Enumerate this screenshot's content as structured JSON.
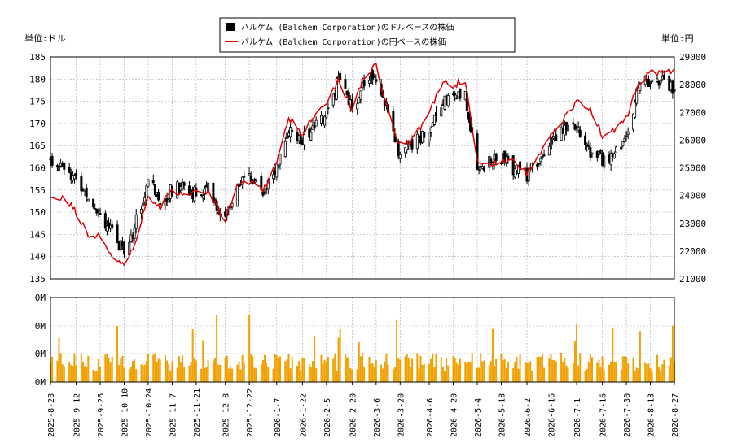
{
  "chart_data": {
    "type": "candlestick+bar",
    "legend": {
      "placement": "top-center",
      "items": [
        {
          "label": "バルケム (Balchem Corporation)のドルベースの株価",
          "marker": "black-square",
          "color": "#000000"
        },
        {
          "label": "バルケム (Balchem Corporation)の円ベースの株価",
          "marker": "red-line",
          "color": "#dd0000"
        }
      ]
    },
    "left_axis_unit": "単位:ドル",
    "right_axis_unit": "単位:円",
    "usd_axis": {
      "ticks": [
        135,
        140,
        145,
        150,
        155,
        160,
        165,
        170,
        175,
        180,
        185
      ],
      "range": [
        135,
        185
      ]
    },
    "jpy_axis": {
      "ticks": [
        21000,
        22000,
        23000,
        24000,
        25000,
        26000,
        27000,
        28000,
        29000
      ],
      "range": [
        21000,
        29000
      ]
    },
    "volume_axis": {
      "ticks": [
        "0M",
        "0M",
        "0M",
        "0M"
      ]
    },
    "x_ticks": [
      "2025-8-28",
      "2025-9-12",
      "2025-9-26",
      "2025-10-10",
      "2025-10-24",
      "2025-11-7",
      "2025-11-21",
      "2025-12-8",
      "2025-12-22",
      "2026-1-7",
      "2026-1-22",
      "2026-2-5",
      "2026-2-20",
      "2026-3-6",
      "2026-3-20",
      "2026-4-6",
      "2026-4-20",
      "2026-5-4",
      "2026-5-18",
      "2026-6-2",
      "2026-6-16",
      "2026-7-1",
      "2026-7-16",
      "2026-7-30",
      "2026-8-13",
      "2026-8-27"
    ],
    "usd_close_path": [
      {
        "x": "2025-8-28",
        "y": 162
      },
      {
        "x": "2025-9-5",
        "y": 161
      },
      {
        "x": "2025-9-12",
        "y": 157
      },
      {
        "x": "2025-9-19",
        "y": 154
      },
      {
        "x": "2025-9-26",
        "y": 150
      },
      {
        "x": "2025-10-3",
        "y": 145
      },
      {
        "x": "2025-10-10",
        "y": 141
      },
      {
        "x": "2025-10-17",
        "y": 148
      },
      {
        "x": "2025-10-24",
        "y": 157
      },
      {
        "x": "2025-10-31",
        "y": 153
      },
      {
        "x": "2025-11-7",
        "y": 155
      },
      {
        "x": "2025-11-14",
        "y": 156
      },
      {
        "x": "2025-11-21",
        "y": 154
      },
      {
        "x": "2025-11-28",
        "y": 155
      },
      {
        "x": "2025-12-8",
        "y": 148
      },
      {
        "x": "2025-12-15",
        "y": 157
      },
      {
        "x": "2025-12-22",
        "y": 158
      },
      {
        "x": "2025-12-30",
        "y": 155
      },
      {
        "x": "2026-1-7",
        "y": 160
      },
      {
        "x": "2026-1-14",
        "y": 168
      },
      {
        "x": "2026-1-22",
        "y": 166
      },
      {
        "x": "2026-1-29",
        "y": 170
      },
      {
        "x": "2026-2-5",
        "y": 172
      },
      {
        "x": "2026-2-12",
        "y": 180
      },
      {
        "x": "2026-2-20",
        "y": 173
      },
      {
        "x": "2026-2-27",
        "y": 180
      },
      {
        "x": "2026-3-6",
        "y": 181
      },
      {
        "x": "2026-3-13",
        "y": 172
      },
      {
        "x": "2026-3-20",
        "y": 163
      },
      {
        "x": "2026-3-27",
        "y": 165
      },
      {
        "x": "2026-4-6",
        "y": 169
      },
      {
        "x": "2026-4-13",
        "y": 175
      },
      {
        "x": "2026-4-20",
        "y": 176
      },
      {
        "x": "2026-4-27",
        "y": 176
      },
      {
        "x": "2026-5-4",
        "y": 160
      },
      {
        "x": "2026-5-11",
        "y": 161
      },
      {
        "x": "2026-5-18",
        "y": 162
      },
      {
        "x": "2026-5-25",
        "y": 160
      },
      {
        "x": "2026-6-2",
        "y": 158
      },
      {
        "x": "2026-6-9",
        "y": 162
      },
      {
        "x": "2026-6-16",
        "y": 167
      },
      {
        "x": "2026-6-23",
        "y": 168
      },
      {
        "x": "2026-7-1",
        "y": 169
      },
      {
        "x": "2026-7-8",
        "y": 164
      },
      {
        "x": "2026-7-16",
        "y": 162
      },
      {
        "x": "2026-7-23",
        "y": 163
      },
      {
        "x": "2026-7-30",
        "y": 167
      },
      {
        "x": "2026-8-6",
        "y": 178
      },
      {
        "x": "2026-8-13",
        "y": 180
      },
      {
        "x": "2026-8-20",
        "y": 179
      },
      {
        "x": "2026-8-27",
        "y": 178
      }
    ],
    "jpy_close_path": [
      {
        "x": "2025-8-28",
        "y": 24000
      },
      {
        "x": "2025-9-5",
        "y": 23900
      },
      {
        "x": "2025-9-12",
        "y": 23400
      },
      {
        "x": "2025-9-19",
        "y": 22500
      },
      {
        "x": "2025-9-26",
        "y": 22600
      },
      {
        "x": "2025-10-3",
        "y": 21700
      },
      {
        "x": "2025-10-10",
        "y": 21600
      },
      {
        "x": "2025-10-17",
        "y": 22400
      },
      {
        "x": "2025-10-24",
        "y": 24000
      },
      {
        "x": "2025-10-31",
        "y": 23600
      },
      {
        "x": "2025-11-7",
        "y": 24200
      },
      {
        "x": "2025-11-14",
        "y": 24000
      },
      {
        "x": "2025-11-21",
        "y": 24100
      },
      {
        "x": "2025-11-28",
        "y": 24200
      },
      {
        "x": "2025-12-8",
        "y": 23100
      },
      {
        "x": "2025-12-15",
        "y": 24400
      },
      {
        "x": "2025-12-22",
        "y": 24500
      },
      {
        "x": "2025-12-30",
        "y": 24200
      },
      {
        "x": "2026-1-7",
        "y": 25200
      },
      {
        "x": "2026-1-14",
        "y": 26800
      },
      {
        "x": "2026-1-22",
        "y": 26200
      },
      {
        "x": "2026-1-29",
        "y": 26900
      },
      {
        "x": "2026-2-5",
        "y": 27200
      },
      {
        "x": "2026-2-12",
        "y": 28200
      },
      {
        "x": "2026-2-20",
        "y": 27100
      },
      {
        "x": "2026-2-27",
        "y": 28300
      },
      {
        "x": "2026-3-6",
        "y": 28700
      },
      {
        "x": "2026-3-13",
        "y": 27000
      },
      {
        "x": "2026-3-20",
        "y": 25800
      },
      {
        "x": "2026-3-27",
        "y": 26000
      },
      {
        "x": "2026-4-6",
        "y": 27000
      },
      {
        "x": "2026-4-13",
        "y": 28000
      },
      {
        "x": "2026-4-20",
        "y": 28000
      },
      {
        "x": "2026-4-27",
        "y": 28100
      },
      {
        "x": "2026-5-4",
        "y": 25300
      },
      {
        "x": "2026-5-11",
        "y": 25100
      },
      {
        "x": "2026-5-18",
        "y": 25300
      },
      {
        "x": "2026-5-25",
        "y": 25300
      },
      {
        "x": "2026-6-2",
        "y": 24800
      },
      {
        "x": "2026-6-9",
        "y": 25400
      },
      {
        "x": "2026-6-16",
        "y": 26200
      },
      {
        "x": "2026-6-23",
        "y": 26700
      },
      {
        "x": "2026-7-1",
        "y": 27400
      },
      {
        "x": "2026-7-8",
        "y": 27200
      },
      {
        "x": "2026-7-16",
        "y": 26200
      },
      {
        "x": "2026-7-23",
        "y": 26400
      },
      {
        "x": "2026-7-30",
        "y": 26800
      },
      {
        "x": "2026-8-6",
        "y": 28100
      },
      {
        "x": "2026-8-13",
        "y": 28400
      },
      {
        "x": "2026-8-20",
        "y": 28500
      },
      {
        "x": "2026-8-27",
        "y": 28500
      }
    ],
    "colors": {
      "usd": "#000000",
      "jpy": "#dd0000",
      "volume": "#f0a000",
      "grid": "#aaaaaa"
    }
  }
}
